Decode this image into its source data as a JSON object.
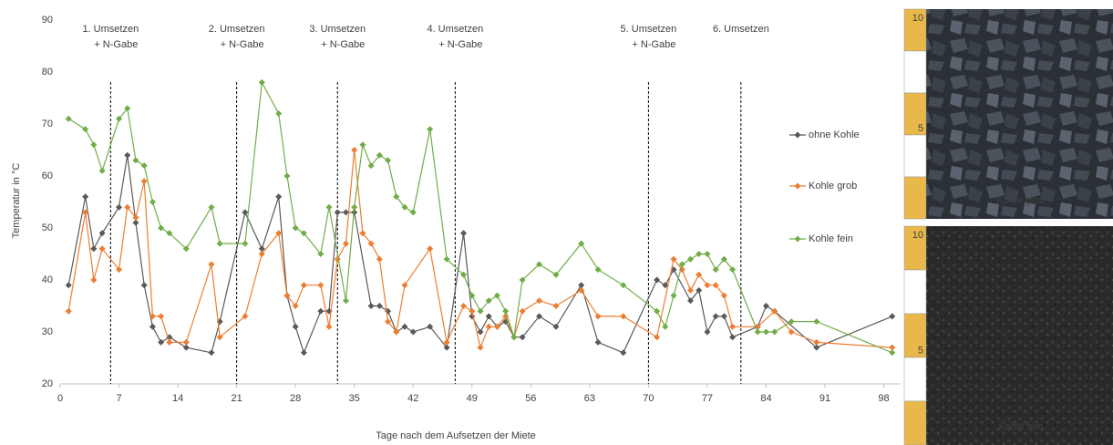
{
  "chart_data": {
    "type": "line",
    "y_label": "Temperatur in °C",
    "x_label": "Tage nach dem Aufsetzen der Miete",
    "xlim": [
      0,
      100
    ],
    "xticks": [
      0,
      7,
      14,
      21,
      28,
      35,
      42,
      49,
      56,
      63,
      70,
      77,
      84,
      91,
      98
    ],
    "ylim": [
      20,
      90
    ],
    "yticks": [
      20,
      30,
      40,
      50,
      60,
      70,
      80,
      90
    ],
    "grid": false,
    "legend": "right",
    "events": [
      {
        "day": 6,
        "label": [
          "1. Umsetzen",
          "+ N-Gabe"
        ]
      },
      {
        "day": 21,
        "label": [
          "2. Umsetzen",
          "+ N-Gabe"
        ]
      },
      {
        "day": 33,
        "label": [
          "3. Umsetzen",
          "+ N-Gabe"
        ]
      },
      {
        "day": 47,
        "label": [
          "4. Umsetzen",
          "+ N-Gabe"
        ]
      },
      {
        "day": 70,
        "label": [
          "5. Umsetzen",
          "+ N-Gabe"
        ]
      },
      {
        "day": 81,
        "label": [
          "6. Umsetzen"
        ]
      }
    ],
    "series": [
      {
        "name": "ohne Kohle",
        "color": "#595959",
        "x": [
          1,
          3,
          4,
          5,
          7,
          8,
          9,
          10,
          11,
          12,
          13,
          15,
          18,
          19,
          22,
          24,
          26,
          27,
          28,
          29,
          31,
          32,
          33,
          34,
          35,
          37,
          38,
          39,
          40,
          41,
          42,
          44,
          46,
          48,
          49,
          50,
          51,
          52,
          53,
          54,
          55,
          57,
          59,
          62,
          64,
          67,
          71,
          72,
          73,
          75,
          76,
          77,
          78,
          79,
          80,
          83,
          84,
          85,
          90,
          99
        ],
        "values": [
          39,
          56,
          46,
          49,
          54,
          64,
          51,
          39,
          31,
          28,
          29,
          27,
          26,
          32,
          53,
          46,
          56,
          37,
          31,
          26,
          34,
          34,
          53,
          53,
          53,
          35,
          35,
          34,
          30,
          31,
          30,
          31,
          27,
          49,
          33,
          30,
          33,
          31,
          32,
          29,
          29,
          33,
          31,
          39,
          28,
          26,
          40,
          39,
          42,
          36,
          38,
          30,
          33,
          33,
          29,
          31,
          35,
          34,
          27,
          33
        ]
      },
      {
        "name": "Kohle grob",
        "color": "#ed7d31",
        "x": [
          1,
          3,
          4,
          5,
          7,
          8,
          9,
          10,
          11,
          12,
          13,
          15,
          18,
          19,
          22,
          24,
          26,
          27,
          28,
          29,
          31,
          32,
          33,
          34,
          35,
          36,
          37,
          38,
          39,
          40,
          41,
          44,
          46,
          48,
          49,
          50,
          51,
          52,
          53,
          54,
          55,
          57,
          59,
          62,
          64,
          67,
          71,
          73,
          74,
          75,
          76,
          77,
          78,
          79,
          80,
          83,
          85,
          87,
          90,
          99
        ],
        "values": [
          34,
          53,
          40,
          46,
          42,
          54,
          52,
          59,
          33,
          33,
          28,
          28,
          43,
          29,
          33,
          45,
          49,
          37,
          35,
          39,
          39,
          31,
          44,
          47,
          65,
          49,
          47,
          44,
          32,
          30,
          39,
          46,
          28,
          35,
          34,
          27,
          31,
          31,
          33,
          29,
          34,
          36,
          35,
          38,
          33,
          33,
          29,
          44,
          42,
          38,
          41,
          39,
          39,
          37,
          31,
          31,
          34,
          30,
          28,
          27
        ]
      },
      {
        "name": "Kohle fein",
        "color": "#70ad47",
        "x": [
          1,
          3,
          4,
          5,
          7,
          8,
          9,
          10,
          11,
          12,
          13,
          15,
          18,
          19,
          22,
          24,
          26,
          27,
          28,
          29,
          31,
          32,
          34,
          35,
          36,
          37,
          38,
          39,
          40,
          41,
          42,
          44,
          46,
          48,
          49,
          50,
          51,
          52,
          53,
          54,
          55,
          57,
          59,
          62,
          64,
          67,
          71,
          72,
          73,
          74,
          75,
          76,
          77,
          78,
          79,
          80,
          83,
          84,
          85,
          87,
          90,
          99
        ],
        "values": [
          71,
          69,
          66,
          61,
          71,
          73,
          63,
          62,
          55,
          50,
          49,
          46,
          54,
          47,
          47,
          78,
          72,
          60,
          50,
          49,
          45,
          54,
          36,
          54,
          66,
          62,
          64,
          63,
          56,
          54,
          53,
          69,
          44,
          41,
          37,
          34,
          36,
          37,
          34,
          29,
          40,
          43,
          41,
          47,
          42,
          39,
          34,
          31,
          37,
          43,
          44,
          45,
          45,
          42,
          44,
          42,
          30,
          30,
          30,
          32,
          32,
          26
        ]
      }
    ]
  },
  "photos": [
    {
      "caption": "Kohle grob",
      "ruler_labels": [
        "10",
        "5"
      ]
    },
    {
      "caption": "Kohle fein",
      "ruler_labels": [
        "10",
        "5"
      ]
    }
  ]
}
